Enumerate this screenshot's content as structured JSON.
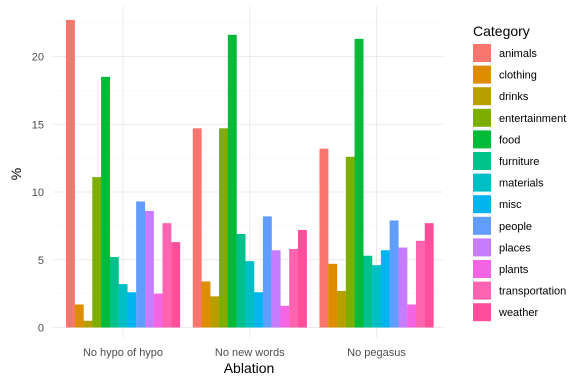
{
  "chart_data": {
    "type": "bar",
    "title": "",
    "xlabel": "Ablation",
    "ylabel": "%",
    "ylim": [
      0,
      23.5
    ],
    "yticks": [
      0,
      5,
      10,
      15,
      20
    ],
    "grid": true,
    "legend_position": "right",
    "legend_title": "Category",
    "categories": [
      "No hypo of hypo",
      "No new words",
      "No pegasus"
    ],
    "series": [
      {
        "name": "animals",
        "color": "#F8766D",
        "values": [
          22.7,
          14.7,
          13.2
        ]
      },
      {
        "name": "clothing",
        "color": "#DE8C00",
        "values": [
          1.7,
          3.4,
          4.7
        ]
      },
      {
        "name": "drinks",
        "color": "#B79F00",
        "values": [
          0.5,
          2.3,
          2.7
        ]
      },
      {
        "name": "entertainment",
        "color": "#7CAE00",
        "values": [
          11.1,
          14.7,
          12.6
        ]
      },
      {
        "name": "food",
        "color": "#00BA38",
        "values": [
          18.5,
          21.6,
          21.3
        ]
      },
      {
        "name": "furniture",
        "color": "#00C08B",
        "values": [
          5.2,
          6.9,
          5.3
        ]
      },
      {
        "name": "materials",
        "color": "#00BFC4",
        "values": [
          3.2,
          4.9,
          4.6
        ]
      },
      {
        "name": "misc",
        "color": "#00B4F0",
        "values": [
          2.6,
          2.6,
          5.7
        ]
      },
      {
        "name": "people",
        "color": "#619CFF",
        "values": [
          9.3,
          8.2,
          7.9
        ]
      },
      {
        "name": "places",
        "color": "#C77CFF",
        "values": [
          8.6,
          5.7,
          5.9
        ]
      },
      {
        "name": "plants",
        "color": "#F564E3",
        "values": [
          2.5,
          1.6,
          1.7
        ]
      },
      {
        "name": "transportation",
        "color": "#FF64B0",
        "values": [
          7.7,
          5.8,
          6.4
        ]
      },
      {
        "name": "weather",
        "color": "#FF4F9A",
        "values": [
          6.3,
          7.2,
          7.7
        ]
      }
    ]
  }
}
